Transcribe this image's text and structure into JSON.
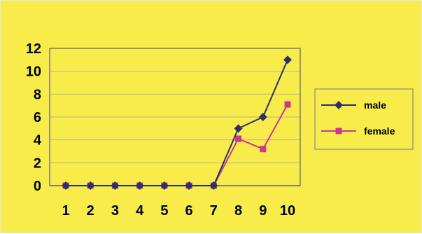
{
  "colors": {
    "background": "#f7ec4a",
    "plot_border": "#7a7a7a",
    "grid": "#b7b09a",
    "male": "#2b2f6b",
    "female": "#d0358e"
  },
  "chart_data": {
    "type": "line",
    "title": "",
    "xlabel": "",
    "ylabel": "",
    "x": [
      1,
      2,
      3,
      4,
      5,
      6,
      7,
      8,
      9,
      10
    ],
    "ylim": [
      0,
      12
    ],
    "yticks": [
      0,
      2,
      4,
      6,
      8,
      10,
      12
    ],
    "grid": true,
    "legend": "right",
    "series": [
      {
        "name": "male",
        "marker": "diamond",
        "values": [
          0,
          0,
          0,
          0,
          0,
          0,
          0,
          5,
          6,
          11
        ]
      },
      {
        "name": "female",
        "marker": "square",
        "values": [
          0,
          0,
          0,
          0,
          0,
          0,
          0,
          4.1,
          3.2,
          7.1
        ]
      }
    ]
  }
}
